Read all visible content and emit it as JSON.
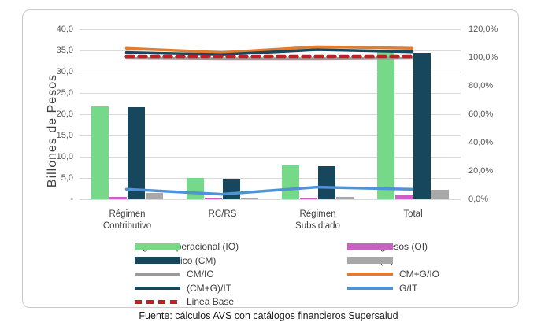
{
  "source_note": "Fuente: cálculos AVS con catálogos financieros Supersalud",
  "chart_data": {
    "type": "bar",
    "subtype": "grouped-bar-with-line-overlay-dual-axis",
    "title": "",
    "ylabel": "Billones de Pesos",
    "xlabel": "",
    "grid": "horizontal",
    "legend_position": "bottom-two-columns",
    "left_axis": {
      "min": 0,
      "max": 40,
      "step": 5,
      "tick_labels_top_to_bottom": [
        "40,0",
        "35,0",
        "30,0",
        "25,0",
        "20,0",
        "15,0",
        "10,0",
        "5,0",
        "-"
      ]
    },
    "right_axis": {
      "min": 0,
      "max": 120,
      "step": 20,
      "unit": "%",
      "tick_labels_top_to_bottom": [
        "120,0%",
        "100,0%",
        "80,0%",
        "60,0%",
        "40,0%",
        "20,0%",
        "0,0%"
      ]
    },
    "categories": [
      "Régimen Contributivo",
      "RC/RS",
      "Régimen Subsidiado",
      "Total"
    ],
    "category_label_lines": [
      [
        "Régimen",
        "Contributivo"
      ],
      [
        "RC/RS"
      ],
      [
        "Régimen",
        "Subsidiado"
      ],
      [
        "Total"
      ]
    ],
    "bar_series": [
      {
        "name": "Ingreso Operacional (IO)",
        "color": "#76d98a",
        "axis": "left",
        "values": [
          21.8,
          5.0,
          7.9,
          34.8
        ]
      },
      {
        "name": "Otros ingresos (OI)",
        "color": "#ca5fc6",
        "axis": "left",
        "values": [
          0.5,
          0.1,
          0.1,
          1.0
        ]
      },
      {
        "name": "Costo medico (CM)",
        "color": "#17475c",
        "axis": "left",
        "values": [
          21.7,
          4.9,
          7.8,
          34.4
        ]
      },
      {
        "name": "Gastos (G)",
        "color": "#a8a8a8",
        "axis": "left",
        "values": [
          1.4,
          0.2,
          0.6,
          2.2
        ]
      }
    ],
    "line_series": [
      {
        "name": "CM/IO",
        "color": "#9a9a9a",
        "dashed": false,
        "axis": "right",
        "width": 3,
        "values_pct": [
          99,
          98.5,
          98.5,
          99
        ]
      },
      {
        "name": "CM+G/IO",
        "color": "#e17d33",
        "dashed": false,
        "axis": "right",
        "width": 3.5,
        "values_pct": [
          106,
          103,
          107,
          106
        ]
      },
      {
        "name": "(CM+G)/IT",
        "color": "#17475c",
        "dashed": false,
        "axis": "right",
        "width": 3.5,
        "values_pct": [
          103,
          101.5,
          105,
          103.5
        ]
      },
      {
        "name": "G/IT",
        "color": "#4f93d6",
        "dashed": false,
        "axis": "right",
        "width": 3.5,
        "values_pct": [
          6.5,
          3,
          8,
          6.5
        ]
      },
      {
        "name": "Linea Base",
        "color": "#be2026",
        "dashed": true,
        "axis": "right",
        "width": 4.5,
        "values_pct": [
          100,
          100,
          100,
          100
        ]
      }
    ],
    "legend": {
      "left_column": [
        {
          "label": "Ingreso Operacional (IO)",
          "marker": "bar",
          "color": "#76d98a"
        },
        {
          "label": "Costo medico (CM)",
          "marker": "bar",
          "color": "#17475c"
        },
        {
          "label": "CM/IO",
          "marker": "line",
          "color": "#9a9a9a"
        },
        {
          "label": "(CM+G)/IT",
          "marker": "line",
          "color": "#17475c"
        },
        {
          "label": "Linea Base",
          "marker": "dashed",
          "color": "#be2026"
        }
      ],
      "right_column": [
        {
          "label": "Otros ingresos (OI)",
          "marker": "bar",
          "color": "#ca5fc6"
        },
        {
          "label": "Gastos (G)",
          "marker": "bar",
          "color": "#a8a8a8"
        },
        {
          "label": "CM+G/IO",
          "marker": "line",
          "color": "#e17d33"
        },
        {
          "label": "G/IT",
          "marker": "line",
          "color": "#4f93d6"
        }
      ]
    }
  }
}
